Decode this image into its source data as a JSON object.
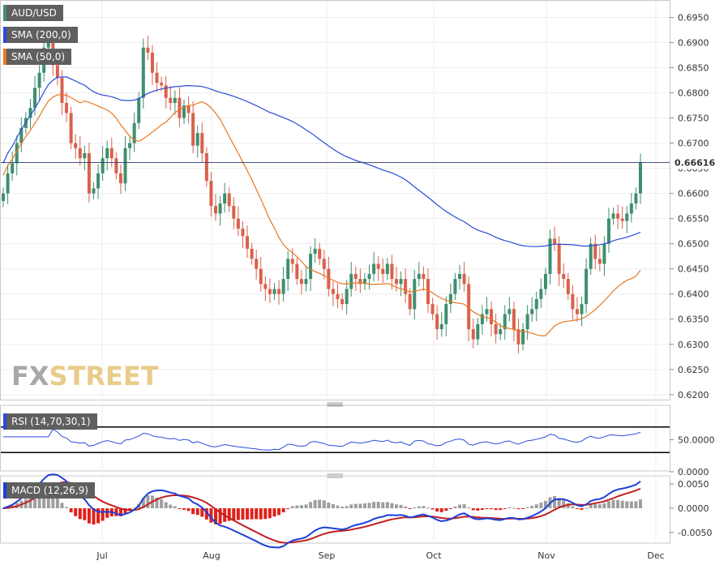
{
  "chart_data": [
    {
      "type": "candlestick",
      "panel": "price",
      "legend": [
        {
          "label": "AUD/USD",
          "color": "#3f8f6f"
        },
        {
          "label": "SMA (200,0)",
          "color": "#2b4bd8"
        },
        {
          "label": "SMA (50,0)",
          "color": "#e87722"
        }
      ],
      "last_price_label": "0.66616",
      "last_price": 0.66616,
      "ylim": [
        0.619,
        0.6975
      ],
      "y_ticks": [
        "0.6950",
        "0.6900",
        "0.6850",
        "0.6800",
        "0.6750",
        "0.6700",
        "0.6650",
        "0.6600",
        "0.6550",
        "0.6500",
        "0.6450",
        "0.6400",
        "0.6350",
        "0.6300",
        "0.6250",
        "0.6200"
      ],
      "x_ticks": [
        "Jul",
        "Aug",
        "Sep",
        "Oct",
        "Nov",
        "Dec"
      ],
      "up_color": "#3f8f6f",
      "down_color": "#d9614c",
      "closes": [
        0.66,
        0.664,
        0.666,
        0.67,
        0.673,
        0.675,
        0.677,
        0.681,
        0.684,
        0.689,
        0.69,
        0.6855,
        0.683,
        0.678,
        0.676,
        0.67,
        0.669,
        0.667,
        0.668,
        0.66,
        0.661,
        0.664,
        0.667,
        0.669,
        0.667,
        0.664,
        0.662,
        0.669,
        0.67,
        0.674,
        0.679,
        0.689,
        0.688,
        0.684,
        0.682,
        0.6815,
        0.679,
        0.678,
        0.679,
        0.675,
        0.6775,
        0.676,
        0.6695,
        0.672,
        0.668,
        0.6625,
        0.6575,
        0.656,
        0.658,
        0.66,
        0.6575,
        0.655,
        0.653,
        0.6515,
        0.649,
        0.647,
        0.645,
        0.642,
        0.641,
        0.64,
        0.641,
        0.64,
        0.643,
        0.647,
        0.646,
        0.643,
        0.642,
        0.643,
        0.648,
        0.649,
        0.647,
        0.645,
        0.641,
        0.64,
        0.639,
        0.638,
        0.641,
        0.644,
        0.643,
        0.642,
        0.643,
        0.644,
        0.646,
        0.645,
        0.644,
        0.646,
        0.643,
        0.642,
        0.643,
        0.64,
        0.637,
        0.643,
        0.644,
        0.643,
        0.638,
        0.636,
        0.633,
        0.634,
        0.638,
        0.64,
        0.643,
        0.644,
        0.642,
        0.633,
        0.631,
        0.634,
        0.636,
        0.637,
        0.634,
        0.632,
        0.633,
        0.636,
        0.637,
        0.633,
        0.63,
        0.633,
        0.636,
        0.637,
        0.639,
        0.641,
        0.644,
        0.651,
        0.65,
        0.644,
        0.643,
        0.64,
        0.637,
        0.636,
        0.638,
        0.645,
        0.65,
        0.647,
        0.646,
        0.65,
        0.655,
        0.656,
        0.655,
        0.6545,
        0.656,
        0.658,
        0.66,
        0.66616
      ],
      "sma200_ends": [
        0.67,
        0.659
      ],
      "sma50_ends": [
        0.666,
        0.6415
      ]
    },
    {
      "type": "line",
      "panel": "rsi",
      "label": "RSI (14,70,30,1)",
      "y_ticks": [
        "50.0000",
        "0.0000"
      ],
      "levels": [
        70,
        30
      ],
      "ylim": [
        0,
        100
      ],
      "line_color": "#2b4bd8"
    },
    {
      "type": "bar",
      "panel": "macd",
      "label": "MACD (12,26,9)",
      "y_ticks": [
        "0.0050",
        "0.0000",
        "-0.0050"
      ],
      "ylim": [
        -0.0072,
        0.0062
      ],
      "macd_color": "#1b3fd9",
      "signal_color": "#c21f1f",
      "hist_pos_color": "#9e9e9e",
      "hist_neg_color": "#e0201a"
    }
  ],
  "brand": {
    "fx": "FX",
    "street": "STREET"
  }
}
